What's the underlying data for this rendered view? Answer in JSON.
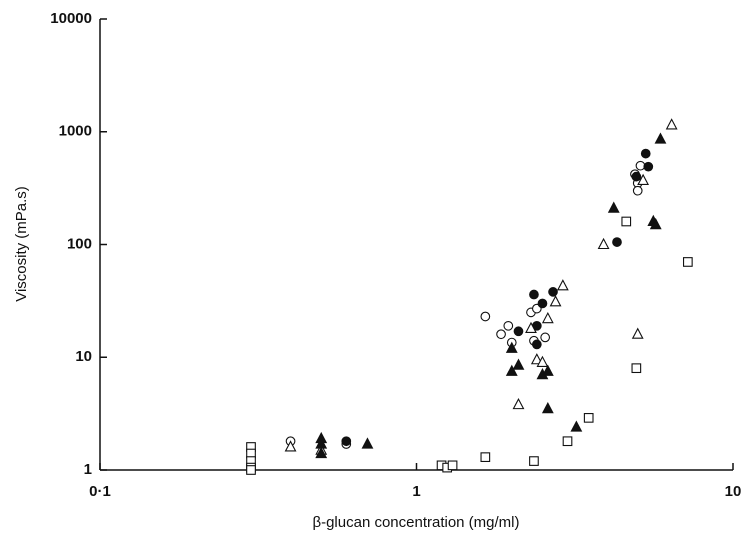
{
  "chart_data": {
    "type": "scatter",
    "x_label": "β-glucan concentration (mg/ml)",
    "y_label": "Viscosity (mPa.s)",
    "xscale": "log",
    "yscale": "log",
    "xlim": [
      0.1,
      10
    ],
    "ylim": [
      1,
      10000
    ],
    "xticks": [
      {
        "value": 0.1,
        "label": "0·1"
      },
      1,
      10
    ],
    "yticks": [
      1,
      10,
      100,
      1000,
      10000
    ],
    "series": [
      {
        "marker": "circle",
        "filled": false,
        "color": "#111111",
        "x": [
          0.4,
          0.6,
          1.65,
          1.85,
          1.95,
          2.0,
          2.3,
          2.35,
          2.4,
          2.55,
          4.9,
          5.0,
          5.0,
          5.1
        ],
        "values": [
          1.8,
          1.7,
          23,
          16,
          19,
          13.5,
          25,
          14,
          27,
          15,
          420,
          350,
          300,
          500
        ]
      },
      {
        "marker": "circle",
        "filled": true,
        "color": "#111111",
        "x": [
          0.6,
          2.1,
          2.35,
          2.4,
          2.4,
          2.5,
          2.7,
          4.3,
          4.95,
          5.3,
          5.4
        ],
        "values": [
          1.8,
          17,
          36,
          19,
          13,
          30,
          38,
          105,
          400,
          640,
          490
        ]
      },
      {
        "marker": "triangle",
        "filled": false,
        "color": "#111111",
        "x": [
          0.4,
          0.5,
          2.1,
          2.3,
          2.4,
          2.5,
          2.6,
          2.75,
          2.9,
          3.9,
          5.0,
          5.2,
          6.4
        ],
        "values": [
          1.6,
          1.5,
          3.8,
          18,
          9.5,
          9,
          22,
          31,
          43,
          100,
          16,
          370,
          1150
        ]
      },
      {
        "marker": "triangle",
        "filled": true,
        "color": "#111111",
        "x": [
          0.5,
          0.5,
          0.5,
          0.7,
          2.0,
          2.0,
          2.1,
          2.5,
          2.6,
          2.6,
          3.2,
          4.2,
          5.6,
          5.7,
          5.9
        ],
        "values": [
          1.9,
          1.7,
          1.4,
          1.7,
          12,
          7.5,
          8.5,
          7,
          7.5,
          3.5,
          2.4,
          210,
          160,
          150,
          860
        ]
      },
      {
        "marker": "square",
        "filled": false,
        "color": "#111111",
        "x": [
          0.3,
          0.3,
          0.3,
          0.3,
          0.3,
          1.2,
          1.25,
          1.3,
          1.65,
          2.35,
          3.0,
          3.5,
          4.6,
          4.95,
          7.2
        ],
        "values": [
          1.6,
          1.4,
          1.2,
          1.05,
          1.0,
          1.1,
          1.05,
          1.1,
          1.3,
          1.2,
          1.8,
          2.9,
          160,
          8,
          70
        ]
      }
    ]
  }
}
